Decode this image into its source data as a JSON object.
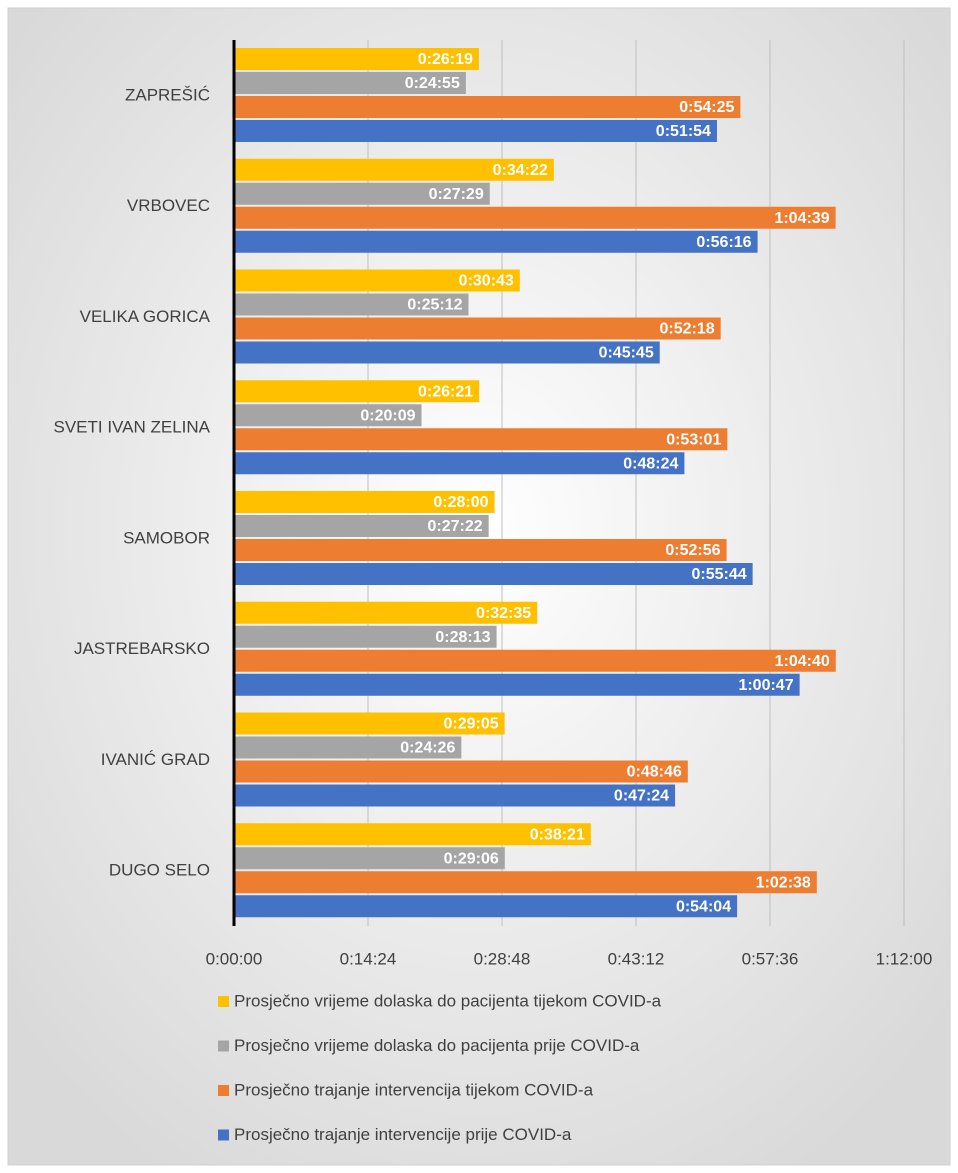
{
  "chart_data": {
    "type": "bar",
    "orientation": "horizontal",
    "categories": [
      "ZAPREŠIĆ",
      "VRBOVEC",
      "VELIKA GORICA",
      "SVETI IVAN ZELINA",
      "SAMOBOR",
      "JASTREBARSKO",
      "IVANIĆ GRAD",
      "DUGO SELO"
    ],
    "series": [
      {
        "name": "Prosječno vrijeme dolaska do pacijenta tijekom COVID-a",
        "color": "#ffc000",
        "values": [
          1579,
          2062,
          1843,
          1581,
          1680,
          1955,
          1745,
          2301
        ],
        "value_labels": [
          "0:26:19",
          "0:34:22",
          "0:30:43",
          "0:26:21",
          "0:28:00",
          "0:32:35",
          "0:29:05",
          "0:38:21"
        ]
      },
      {
        "name": "Prosječno vrijeme dolaska do pacijenta prije COVID-a",
        "color": "#a5a5a5",
        "values": [
          1495,
          1649,
          1512,
          1209,
          1642,
          1693,
          1466,
          1746
        ],
        "value_labels": [
          "0:24:55",
          "0:27:29",
          "0:25:12",
          "0:20:09",
          "0:27:22",
          "0:28:13",
          "0:24:26",
          "0:29:06"
        ]
      },
      {
        "name": "Prosječno trajanje intervencija tijekom COVID-a",
        "color": "#ed7d31",
        "values": [
          3265,
          3879,
          3138,
          3181,
          3176,
          3880,
          2926,
          3758
        ],
        "value_labels": [
          "0:54:25",
          "1:04:39",
          "0:52:18",
          "0:53:01",
          "0:52:56",
          "1:04:40",
          "0:48:46",
          "1:02:38"
        ]
      },
      {
        "name": "Prosječno trajanje intervencije prije COVID-a",
        "color": "#4472c4",
        "values": [
          3114,
          3376,
          2745,
          2904,
          3344,
          3647,
          2844,
          3244
        ],
        "value_labels": [
          "0:51:54",
          "0:56:16",
          "0:45:45",
          "0:48:24",
          "0:55:44",
          "1:00:47",
          "0:47:24",
          "0:54:04"
        ]
      }
    ],
    "xlim": [
      0,
      4320
    ],
    "xticks": [
      {
        "value": 0,
        "label": "0:00:00"
      },
      {
        "value": 864,
        "label": "0:14:24"
      },
      {
        "value": 1728,
        "label": "0:28:48"
      },
      {
        "value": 2592,
        "label": "0:43:12"
      },
      {
        "value": 3456,
        "label": "0:57:36"
      },
      {
        "value": 4320,
        "label": "1:12:00"
      }
    ],
    "grid": true,
    "legend": "bottom"
  }
}
